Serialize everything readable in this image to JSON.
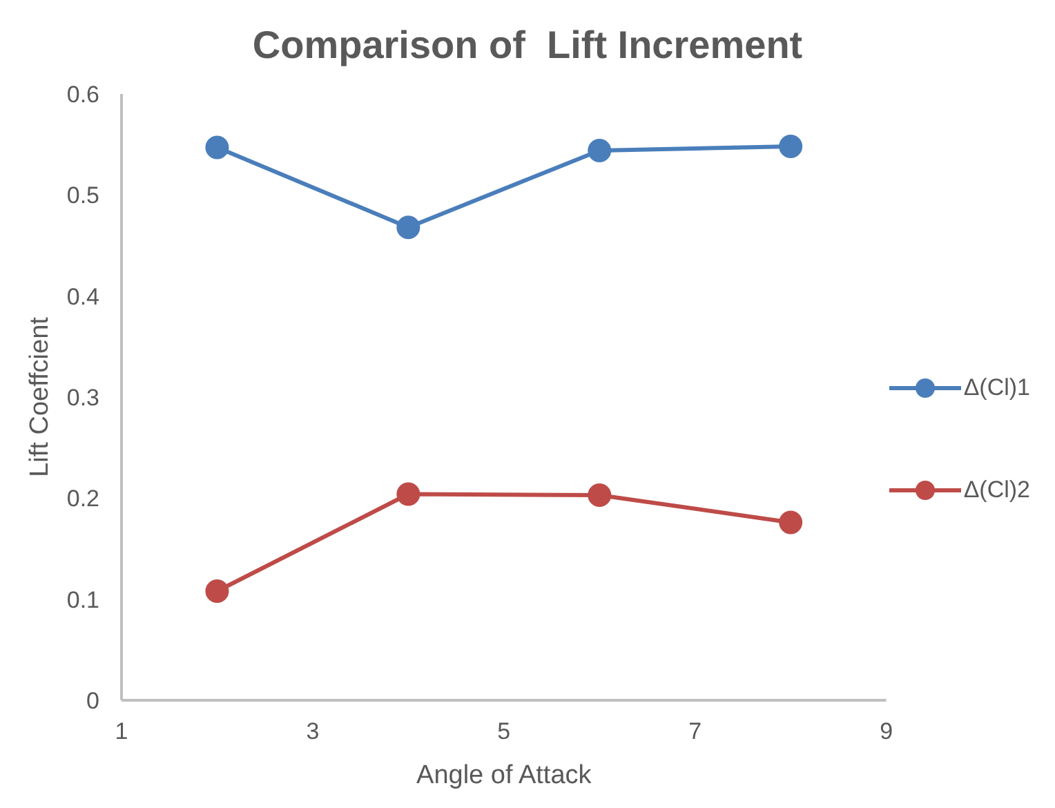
{
  "chart_data": {
    "type": "line",
    "title": "Comparison of  Lift Increment",
    "xlabel": "Angle of Attack",
    "ylabel": "Lift Coeffcient",
    "x": [
      2,
      4,
      6,
      8
    ],
    "series": [
      {
        "name": "Δ(Cl)1",
        "color": "#4a7ebb",
        "values": [
          0.547,
          0.468,
          0.544,
          0.548
        ]
      },
      {
        "name": "Δ(Cl)2",
        "color": "#be4b48",
        "values": [
          0.108,
          0.204,
          0.203,
          0.176
        ]
      }
    ],
    "xlim": [
      1,
      9
    ],
    "xticks": [
      1,
      3,
      5,
      7,
      9
    ],
    "ylim": [
      0,
      0.6
    ],
    "yticks": [
      0,
      0.1,
      0.2,
      0.3,
      0.4,
      0.5,
      0.6
    ],
    "grid": false,
    "legend": "right",
    "marker": "circle",
    "line_style": "solid"
  }
}
